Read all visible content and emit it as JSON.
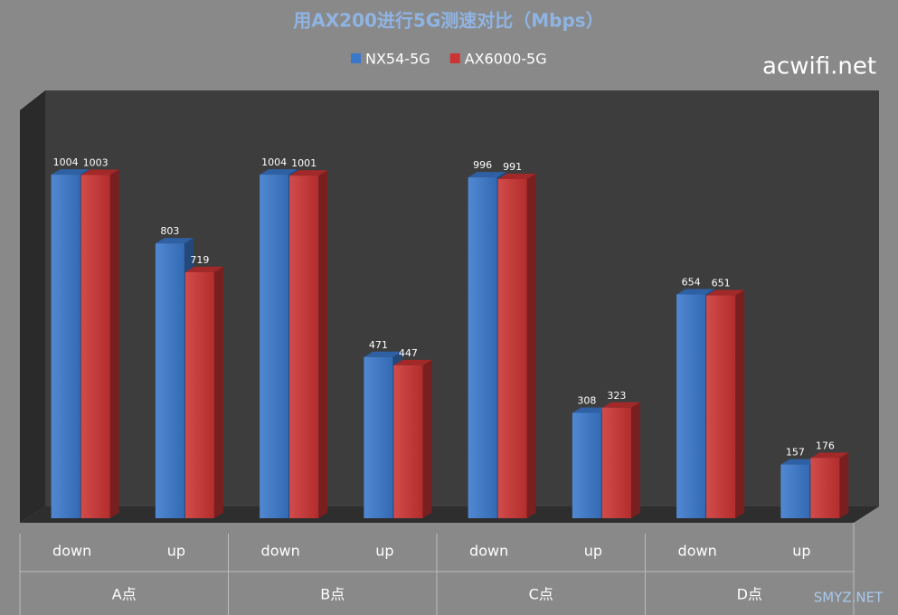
{
  "chart_data": {
    "type": "bar3d",
    "title": "用AX200进行5G测速对比（Mbps）",
    "categories": [
      "down",
      "up",
      "down",
      "up",
      "down",
      "up",
      "down",
      "up"
    ],
    "groups": [
      "A点",
      "B点",
      "C点",
      "D点"
    ],
    "series": [
      {
        "name": "NX54-5G",
        "color": "#3a78cc",
        "values": [
          1004,
          803,
          1004,
          471,
          996,
          308,
          654,
          157
        ]
      },
      {
        "name": "AX6000-5G",
        "color": "#cc3333",
        "values": [
          1003,
          719,
          1001,
          447,
          991,
          323,
          651,
          176
        ]
      }
    ],
    "ylim": [
      0,
      1250
    ],
    "watermarks": [
      "acwifi.net",
      "SMYZ.NET"
    ]
  }
}
